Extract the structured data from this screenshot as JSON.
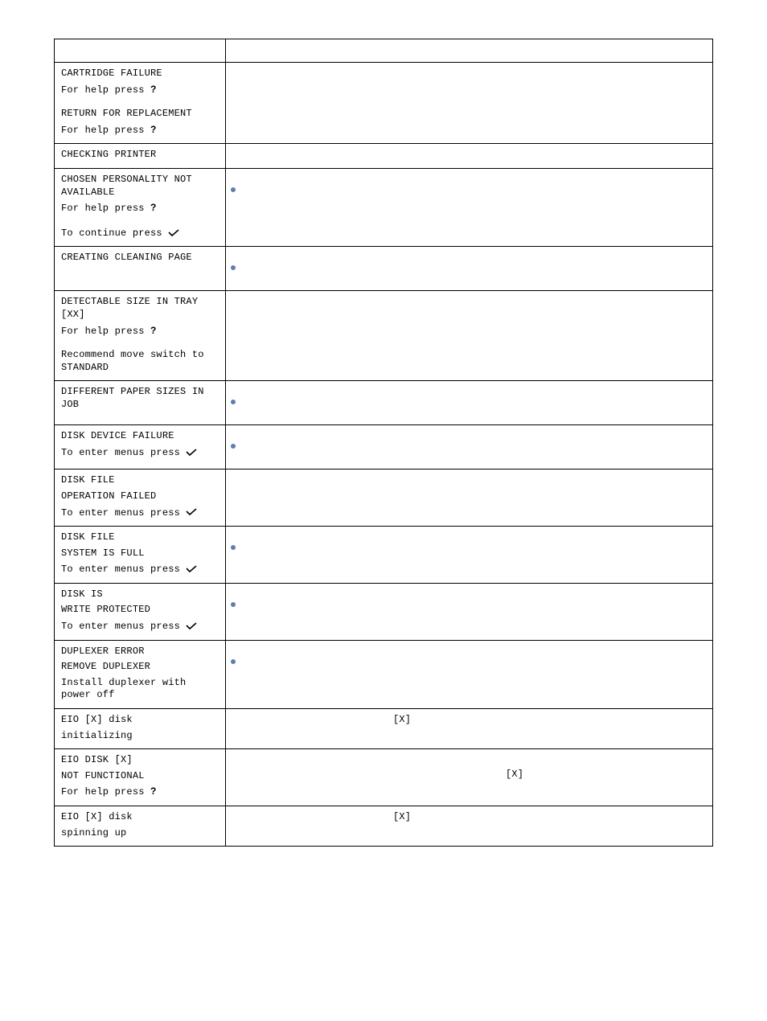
{
  "icons": {
    "help": "?",
    "check": "✔"
  },
  "colors": {
    "bullet": "#5b7fae",
    "border": "#000000",
    "text": "#000000",
    "background": "#ffffff"
  },
  "table": {
    "rows": [
      {
        "id": "cartridge-failure",
        "left_lines": [
          {
            "text": "CARTRIDGE FAILURE",
            "style": "lcd"
          },
          {
            "text": "For help press ",
            "style": "lcd",
            "suffix_icon": "help"
          },
          {
            "text": "",
            "style": "spacer"
          },
          {
            "text": "RETURN FOR REPLACEMENT",
            "style": "lcd"
          },
          {
            "text": "For help press ",
            "style": "lcd",
            "suffix_icon": "help"
          }
        ],
        "right": {
          "bullet": false,
          "text": ""
        }
      },
      {
        "id": "checking-printer",
        "left_lines": [
          {
            "text": "CHECKING PRINTER",
            "style": "lcd"
          }
        ],
        "right": {
          "bullet": false,
          "text": ""
        }
      },
      {
        "id": "chosen-personality",
        "left_lines": [
          {
            "text": "CHOSEN PERSONALITY NOT AVAILABLE",
            "style": "lcd"
          },
          {
            "text": "For help press ",
            "style": "lcd",
            "suffix_icon": "help"
          },
          {
            "text": "",
            "style": "spacer"
          },
          {
            "text": "To continue press ",
            "style": "lcd",
            "suffix_icon": "check"
          }
        ],
        "right": {
          "bullet": true,
          "text": ""
        }
      },
      {
        "id": "creating-cleaning-page",
        "left_lines": [
          {
            "text": "CREATING CLEANING PAGE",
            "style": "lcd"
          }
        ],
        "right": {
          "bullet": true,
          "text": ""
        }
      },
      {
        "id": "detectable-size",
        "left_lines": [
          {
            "text": "DETECTABLE SIZE IN TRAY [XX]",
            "style": "lcd"
          },
          {
            "text": "For help press ",
            "style": "lcd",
            "suffix_icon": "help"
          },
          {
            "text": "",
            "style": "spacer"
          },
          {
            "text": "Recommend move switch to STANDARD",
            "style": "lcd"
          }
        ],
        "right": {
          "bullet": false,
          "text": ""
        }
      },
      {
        "id": "different-paper-sizes",
        "left_lines": [
          {
            "text": "DIFFERENT PAPER SIZES IN JOB",
            "style": "lcd"
          }
        ],
        "right": {
          "bullet": true,
          "text": ""
        }
      },
      {
        "id": "disk-device-failure",
        "left_lines": [
          {
            "text": "DISK DEVICE FAILURE",
            "style": "lcd"
          },
          {
            "text": "To enter menus press ",
            "style": "lcd",
            "suffix_icon": "check"
          }
        ],
        "right": {
          "bullet": true,
          "text": ""
        }
      },
      {
        "id": "disk-file-op-failed",
        "left_lines": [
          {
            "text": "DISK FILE",
            "style": "lcd"
          },
          {
            "text": "OPERATION FAILED",
            "style": "lcd"
          },
          {
            "text": "To enter menus press ",
            "style": "lcd",
            "suffix_icon": "check"
          }
        ],
        "right": {
          "bullet": false,
          "text": ""
        }
      },
      {
        "id": "disk-file-full",
        "left_lines": [
          {
            "text": "DISK FILE",
            "style": "lcd"
          },
          {
            "text": "SYSTEM IS FULL",
            "style": "lcd"
          },
          {
            "text": "To enter menus press ",
            "style": "lcd",
            "suffix_icon": "check"
          }
        ],
        "right": {
          "bullet": true,
          "text": ""
        }
      },
      {
        "id": "disk-write-protected",
        "left_lines": [
          {
            "text": "DISK IS",
            "style": "lcd"
          },
          {
            "text": "WRITE PROTECTED",
            "style": "lcd"
          },
          {
            "text": "To enter menus press ",
            "style": "lcd",
            "suffix_icon": "check"
          }
        ],
        "right": {
          "bullet": true,
          "text": ""
        }
      },
      {
        "id": "duplexer-error",
        "left_lines": [
          {
            "text": "DUPLEXER ERROR",
            "style": "lcd"
          },
          {
            "text": "REMOVE DUPLEXER",
            "style": "lcd"
          },
          {
            "text": "Install duplexer with power off",
            "style": "lcd"
          }
        ],
        "right": {
          "bullet": true,
          "text": ""
        }
      },
      {
        "id": "eio-disk-initializing",
        "left_lines": [
          {
            "text": "EIO [X] disk",
            "style": "lcd"
          },
          {
            "text": "initializing",
            "style": "lcd"
          }
        ],
        "right": {
          "bullet": false,
          "text": "[X]",
          "text_align": "center"
        }
      },
      {
        "id": "eio-disk-not-functional",
        "left_lines": [
          {
            "text": "EIO DISK [X]",
            "style": "lcd"
          },
          {
            "text": "NOT FUNCTIONAL",
            "style": "lcd"
          },
          {
            "text": "For help press ",
            "style": "lcd",
            "suffix_icon": "help"
          }
        ],
        "right": {
          "bullet": false,
          "text": "[X]",
          "text_align": "center-right"
        }
      },
      {
        "id": "eio-disk-spinning-up",
        "left_lines": [
          {
            "text": "EIO [X] disk",
            "style": "lcd"
          },
          {
            "text": "spinning up",
            "style": "lcd"
          }
        ],
        "right": {
          "bullet": false,
          "text": "[X]",
          "text_align": "center"
        }
      }
    ]
  }
}
